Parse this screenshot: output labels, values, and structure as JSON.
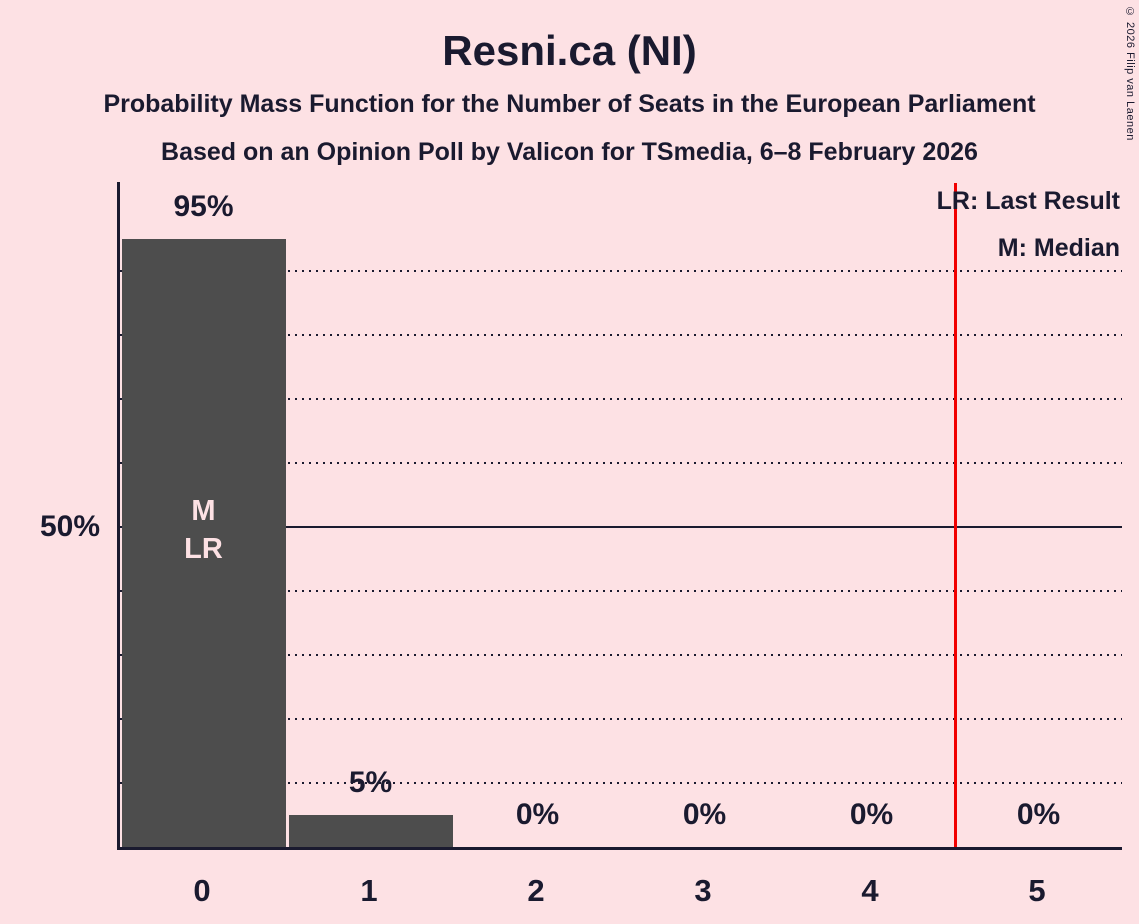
{
  "title": "Resni.ca (NI)",
  "subtitle1": "Probability Mass Function for the Number of Seats in the European Parliament",
  "subtitle2": "Based on an Opinion Poll by Valicon for TSmedia, 6–8 February 2026",
  "copyright": "© 2026 Filip van Laenen",
  "legend": {
    "last_result": "LR: Last Result",
    "median": "M: Median"
  },
  "y_axis_reference_label": "50%",
  "colors": {
    "background": "#fde1e4",
    "bar": "#4d4d4d",
    "ink": "#1a1a2f",
    "threshold_line": "#f10000"
  },
  "chart_data": {
    "type": "bar",
    "title": "Resni.ca (NI)",
    "categories": [
      "0",
      "1",
      "2",
      "3",
      "4",
      "5"
    ],
    "values": [
      95,
      5,
      0,
      0,
      0,
      0
    ],
    "value_labels": [
      "95%",
      "5%",
      "0%",
      "0%",
      "0%",
      "0%"
    ],
    "ylim": [
      0,
      100
    ],
    "y_gridlines_dotted_pct": [
      10,
      20,
      30,
      40,
      60,
      70,
      80,
      90
    ],
    "y_gridline_solid_pct": 50,
    "bar_annotations": {
      "0": [
        "M",
        "LR"
      ]
    },
    "median_category": "0",
    "last_result_category": "0",
    "red_line_x": 4.5,
    "legend_position": "top-right",
    "grid": "horizontal-dotted"
  }
}
